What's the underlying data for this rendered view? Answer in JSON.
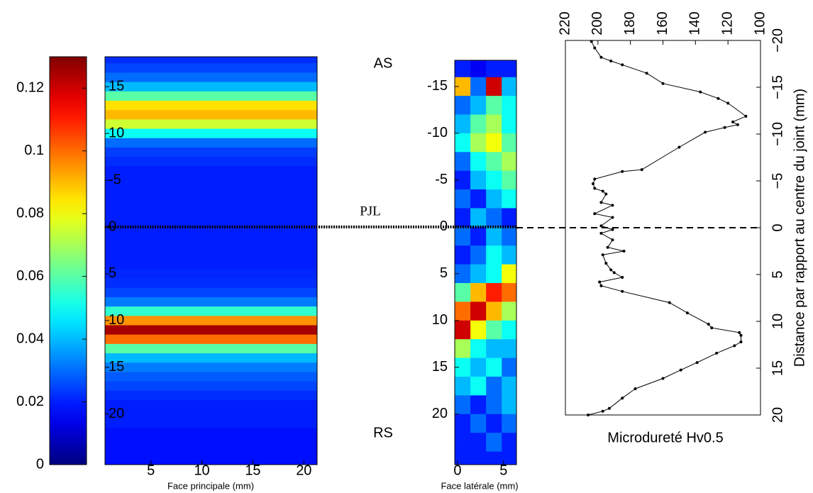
{
  "chart_data": [
    {
      "type": "heatmap-rows",
      "xlabel": "Face principale (mm)",
      "xlim": [
        0.5,
        21.3
      ],
      "xticks": [
        5,
        10,
        15,
        20
      ],
      "ylim": [
        -18.2,
        25.4
      ],
      "yticks": [
        {
          "value": -15,
          "label": "15"
        },
        {
          "value": -10,
          "label": "10"
        },
        -5,
        0,
        5,
        10,
        15,
        20
      ],
      "colormap": "jet",
      "clim": [
        0,
        0.13
      ],
      "cticks": [
        0,
        0.02,
        0.04,
        0.06,
        0.08,
        0.1,
        0.12
      ],
      "row_y": [
        -18,
        -17,
        -16,
        -15,
        -14,
        -13,
        -12,
        -11,
        -10,
        -9,
        -8,
        -7,
        -6,
        -5,
        -4,
        -3,
        -2,
        -1,
        0,
        1,
        2,
        3,
        4,
        5,
        6,
        7,
        8,
        9,
        10,
        11,
        12,
        13,
        14,
        15,
        16,
        17,
        18,
        19,
        20,
        21,
        22,
        23,
        24,
        25
      ],
      "values": [
        0.022,
        0.025,
        0.03,
        0.04,
        0.06,
        0.085,
        0.09,
        0.075,
        0.05,
        0.03,
        0.024,
        0.022,
        0.02,
        0.02,
        0.02,
        0.02,
        0.02,
        0.02,
        0.02,
        0.02,
        0.02,
        0.02,
        0.02,
        0.021,
        0.022,
        0.025,
        0.032,
        0.055,
        0.095,
        0.125,
        0.1,
        0.06,
        0.04,
        0.032,
        0.028,
        0.025,
        0.022,
        0.02,
        0.02,
        0.02,
        0.018,
        0.018,
        0.018,
        0.018
      ]
    },
    {
      "type": "heatmap-grid",
      "xlabel": "Face latérale (mm)",
      "xlim": [
        -0.3,
        6.4
      ],
      "xticks": [
        0,
        5
      ],
      "ylim": [
        -17.8,
        25.4
      ],
      "yticks": [
        -15,
        -10,
        -5,
        0,
        5,
        10,
        15,
        20
      ],
      "col_edges": [
        -0.3,
        1.4,
        3.1,
        4.8,
        6.4
      ],
      "row_edges": [
        -18,
        -16,
        -14,
        -12,
        -10,
        -8,
        -6,
        -4,
        -2,
        0,
        2,
        4,
        6,
        8,
        10,
        12,
        14,
        16,
        18,
        20,
        22,
        24,
        26
      ],
      "values": [
        [
          0.02,
          0.015,
          0.02,
          0.02
        ],
        [
          0.09,
          0.03,
          0.12,
          0.04
        ],
        [
          0.03,
          0.04,
          0.06,
          0.05
        ],
        [
          0.04,
          0.06,
          0.07,
          0.05
        ],
        [
          0.05,
          0.07,
          0.08,
          0.06
        ],
        [
          0.03,
          0.05,
          0.06,
          0.07
        ],
        [
          0.02,
          0.04,
          0.05,
          0.06
        ],
        [
          0.03,
          0.02,
          0.04,
          0.05
        ],
        [
          0.02,
          0.04,
          0.03,
          0.02
        ],
        [
          0.03,
          0.02,
          0.04,
          0.03
        ],
        [
          0.02,
          0.03,
          0.05,
          0.04
        ],
        [
          0.03,
          0.04,
          0.05,
          0.08
        ],
        [
          0.06,
          0.09,
          0.11,
          0.1
        ],
        [
          0.1,
          0.12,
          0.09,
          0.07
        ],
        [
          0.12,
          0.08,
          0.06,
          0.05
        ],
        [
          0.07,
          0.05,
          0.04,
          0.04
        ],
        [
          0.05,
          0.04,
          0.05,
          0.03
        ],
        [
          0.04,
          0.05,
          0.03,
          0.04
        ],
        [
          0.03,
          0.02,
          0.03,
          0.04
        ],
        [
          0.02,
          0.03,
          0.02,
          0.03
        ],
        [
          0.02,
          0.02,
          0.03,
          0.02
        ],
        [
          0.02,
          0.02,
          0.02,
          0.02
        ]
      ],
      "annotations": {
        "top": "AS",
        "bottom": "RS",
        "line_label": "PJL",
        "line_at": 0
      }
    },
    {
      "type": "profile",
      "xlabel": "Microdureté Hv0.5",
      "ylabel": "Distance par rapport au centre du joint (mm)",
      "color": "#000000",
      "xlim": [
        220,
        100
      ],
      "xticks": [
        220,
        200,
        180,
        160,
        140,
        120,
        100
      ],
      "ylim": [
        -20,
        20
      ],
      "yticks": [
        {
          "value": -20,
          "label": "−20"
        },
        {
          "value": -15,
          "label": "−15"
        },
        {
          "value": -10,
          "label": "−10"
        },
        {
          "value": -5,
          "label": "−5"
        },
        0,
        5,
        10,
        15,
        20
      ],
      "positions": [
        -19.9,
        -19.2,
        -18.2,
        -17.8,
        -17.4,
        -16.5,
        -15.4,
        -14.5,
        -13.8,
        -13.3,
        -11.9,
        -11.3,
        -11.0,
        -10.7,
        -10.2,
        -8.6,
        -6.2,
        -6.0,
        -5.2,
        -4.7,
        -4.2,
        -3.9,
        -3.6,
        -2.7,
        -2.4,
        -1.5,
        -1.1,
        -0.2,
        0.2,
        0.6,
        1.3,
        2.1,
        2.5,
        2.9,
        3.8,
        4.5,
        4.8,
        5.3,
        5.8,
        6.2,
        6.8,
        8.0,
        9.1,
        10.3,
        10.7,
        11.2,
        11.5,
        12.2,
        12.6,
        13.4,
        14.4,
        15.2,
        16.1,
        17.2,
        18.2,
        19.3,
        19.6,
        20.0
      ],
      "values": [
        204,
        202,
        198,
        192,
        185,
        170,
        160,
        137,
        126,
        120,
        109,
        117,
        114,
        122,
        134,
        150,
        173,
        185,
        202,
        203,
        202,
        197,
        195,
        198,
        191,
        202,
        191,
        198,
        191,
        198,
        191,
        194,
        184,
        197,
        195,
        192,
        190,
        185,
        199,
        198,
        185,
        156,
        145,
        132,
        130,
        113,
        112,
        112,
        116,
        127,
        139,
        149,
        160,
        177,
        185,
        193,
        197,
        206
      ]
    }
  ]
}
